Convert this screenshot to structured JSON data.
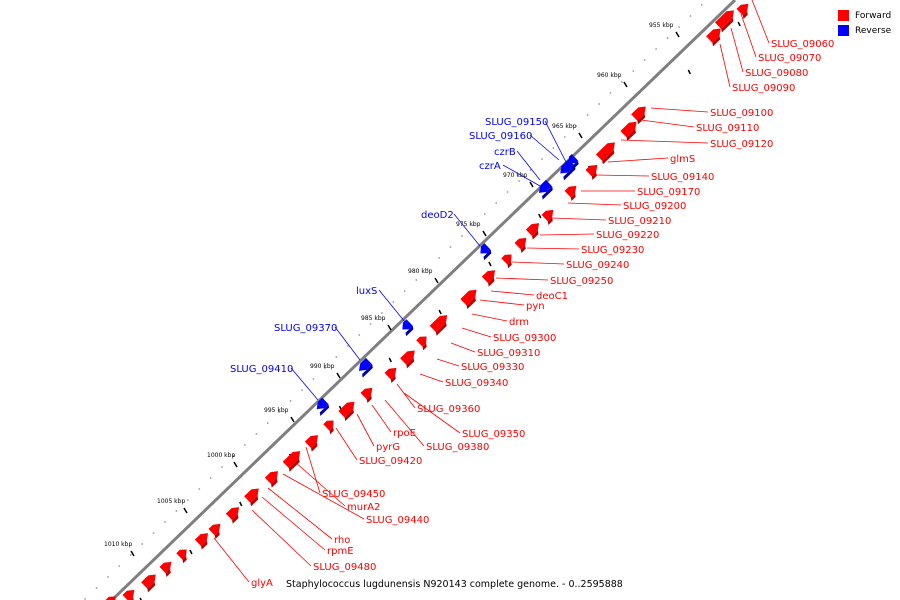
{
  "legend": {
    "forward": {
      "label": "Forward",
      "color": "#ff0000"
    },
    "reverse": {
      "label": "Reverse",
      "color": "#0000ff"
    }
  },
  "caption": "Staphylococcus lugdunensis N920143 complete genome. - 0..2595888",
  "colors": {
    "forward": "#ff0000",
    "forward_dark": "#b80000",
    "reverse": "#0000ff",
    "reverse_dark": "#0000a8",
    "backbone": "#7f7f7f",
    "tick": "#000000",
    "dots": "#999999"
  },
  "scale_labels": [
    "955 kbp",
    "960 kbp",
    "965 kbp",
    "970 kbp",
    "975 kbp",
    "980 kbp",
    "985 kbp",
    "990 kbp",
    "995 kbp",
    "1000 kbp",
    "1005 kbp",
    "1010 kbp"
  ],
  "forward_genes": [
    "SLUG_09060",
    "SLUG_09070",
    "SLUG_09080",
    "SLUG_09090",
    "SLUG_09100",
    "SLUG_09110",
    "SLUG_09120",
    "glmS",
    "SLUG_09140",
    "SLUG_09170",
    "SLUG_09200",
    "SLUG_09210",
    "SLUG_09220",
    "SLUG_09230",
    "SLUG_09240",
    "SLUG_09250",
    "deoC1",
    "pyn",
    "drm",
    "SLUG_09300",
    "SLUG_09310",
    "SLUG_09330",
    "SLUG_09340",
    "SLUG_09360",
    "SLUG_09350",
    "SLUG_09380",
    "rpoE",
    "pyrG",
    "SLUG_09420",
    "SLUG_09450",
    "murA2",
    "SLUG_09440",
    "rho",
    "rpmE",
    "SLUG_09480",
    "glyA"
  ],
  "reverse_genes": [
    "SLUG_09150",
    "SLUG_09160",
    "czrB",
    "czrA",
    "deoD2",
    "luxS",
    "SLUG_09370",
    "SLUG_09410"
  ]
}
